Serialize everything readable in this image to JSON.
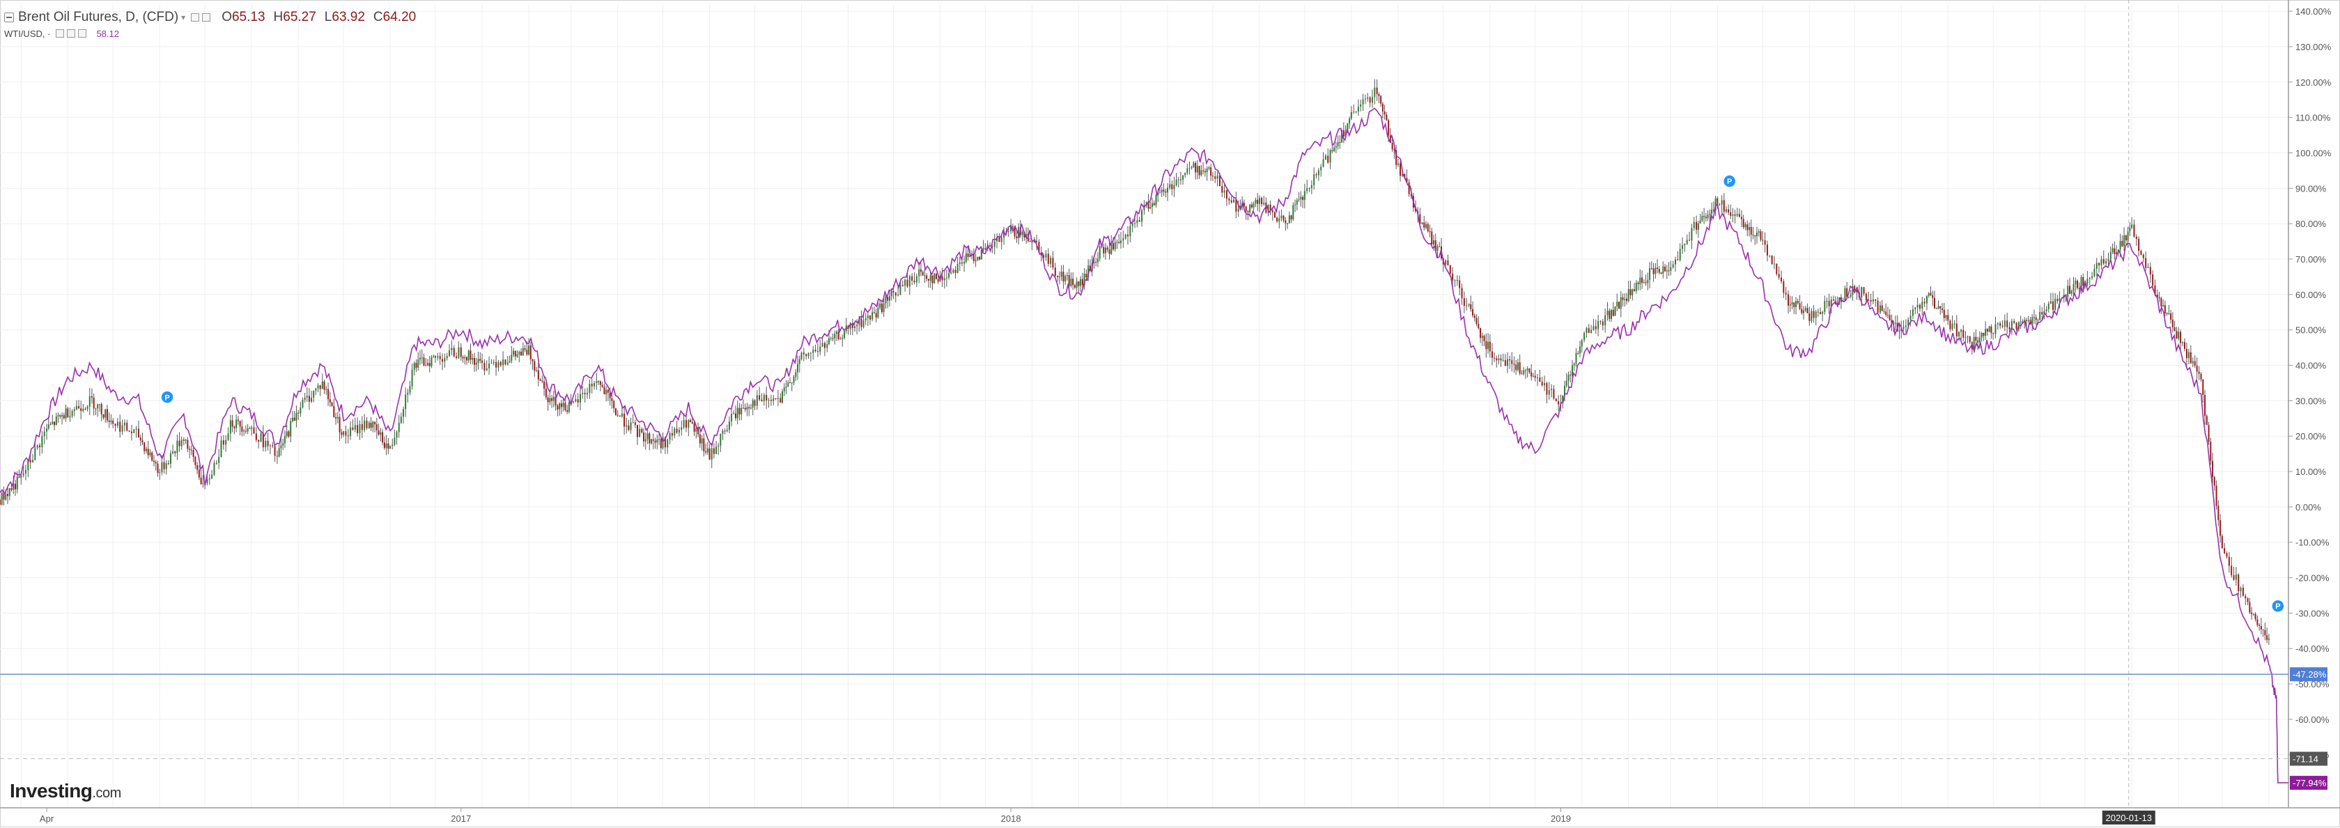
{
  "legend": {
    "main_title": "Brent Oil Futures, D, (CFD)",
    "open_label": "O",
    "open": "65.13",
    "high_label": "H",
    "high": "65.27",
    "low_label": "L",
    "low": "63.92",
    "close_label": "C",
    "close": "64.20",
    "sub_title": "WTI/USD, ·",
    "sub_value": "58.12"
  },
  "logo": {
    "brand": "Investing",
    "suffix": ".com"
  },
  "colors": {
    "up_candle": "#2e7d32",
    "down_candle": "#a01818",
    "wti_line": "#9b2fae",
    "horizontal_line": "#6f8fd6",
    "grid": "#efefef",
    "axis_text": "#555555"
  },
  "chart_data": {
    "type": "line",
    "title": "",
    "xlabel": "",
    "ylabel": "",
    "x_tick_labels": [
      "Apr",
      "2017",
      "2018",
      "2019"
    ],
    "x_tick_dates": [
      "2016-04-01",
      "2017-01-01",
      "2018-01-01",
      "2019-01-01"
    ],
    "crosshair_label": "2020-01-13",
    "crosshair_date": "2020-01-13",
    "x_range": [
      "2016-03-01",
      "2020-04-28"
    ],
    "ylim": [
      -85,
      142
    ],
    "y_tick_values": [
      140,
      130,
      120,
      110,
      100,
      90,
      80,
      70,
      60,
      50,
      40,
      30,
      20,
      10,
      0,
      -10,
      -20,
      -30,
      -40,
      -50,
      -60,
      -70
    ],
    "y_tick_labels": [
      "140.00%",
      "130.00%",
      "120.00%",
      "110.00%",
      "100.00%",
      "90.00%",
      "80.00%",
      "70.00%",
      "60.00%",
      "50.00%",
      "40.00%",
      "30.00%",
      "20.00%",
      "10.00%",
      "0.00%",
      "-10.00%",
      "-20.00%",
      "-30.00%",
      "-40.00%",
      "-50.00%",
      "-60.00%",
      "-70.00%"
    ],
    "grid": true,
    "horizontal_line": {
      "value": -47.28,
      "label": "-47.28%"
    },
    "price_tags": [
      {
        "value": -71.14,
        "label": "-71.14",
        "color": "#555555"
      },
      {
        "value": -77.94,
        "label": "-77.94%",
        "color": "#8e1b9a"
      }
    ],
    "markers": [
      {
        "date": "2016-06-20",
        "value": 31,
        "label": "P"
      },
      {
        "date": "2019-04-23",
        "value": 92,
        "label": "P"
      },
      {
        "date": "2020-04-21",
        "value": -28,
        "label": "P"
      }
    ],
    "series": [
      {
        "name": "Brent Oil Futures",
        "kind": "candlestick",
        "dates": [
          "2016-03-01",
          "2016-03-15",
          "2016-04-01",
          "2016-04-15",
          "2016-05-01",
          "2016-05-15",
          "2016-06-01",
          "2016-06-15",
          "2016-07-01",
          "2016-07-15",
          "2016-08-01",
          "2016-08-15",
          "2016-09-01",
          "2016-09-15",
          "2016-10-01",
          "2016-10-15",
          "2016-11-01",
          "2016-11-15",
          "2016-12-01",
          "2016-12-15",
          "2017-01-01",
          "2017-01-15",
          "2017-02-01",
          "2017-02-15",
          "2017-03-01",
          "2017-03-15",
          "2017-04-01",
          "2017-04-15",
          "2017-05-01",
          "2017-05-15",
          "2017-06-01",
          "2017-06-15",
          "2017-07-01",
          "2017-07-15",
          "2017-08-01",
          "2017-08-15",
          "2017-09-01",
          "2017-09-15",
          "2017-10-01",
          "2017-10-15",
          "2017-11-01",
          "2017-11-15",
          "2017-12-01",
          "2017-12-15",
          "2018-01-01",
          "2018-01-15",
          "2018-02-01",
          "2018-02-15",
          "2018-03-01",
          "2018-03-15",
          "2018-04-01",
          "2018-04-15",
          "2018-05-01",
          "2018-05-15",
          "2018-06-01",
          "2018-06-15",
          "2018-07-01",
          "2018-07-15",
          "2018-08-01",
          "2018-08-15",
          "2018-09-01",
          "2018-09-15",
          "2018-10-01",
          "2018-10-15",
          "2018-11-01",
          "2018-11-15",
          "2018-12-01",
          "2018-12-15",
          "2019-01-01",
          "2019-01-15",
          "2019-02-01",
          "2019-02-15",
          "2019-03-01",
          "2019-03-15",
          "2019-04-01",
          "2019-04-15",
          "2019-05-01",
          "2019-05-15",
          "2019-06-01",
          "2019-06-15",
          "2019-07-01",
          "2019-07-15",
          "2019-08-01",
          "2019-08-15",
          "2019-09-01",
          "2019-09-15",
          "2019-10-01",
          "2019-10-15",
          "2019-11-01",
          "2019-11-15",
          "2019-12-01",
          "2019-12-15",
          "2020-01-01",
          "2020-01-15",
          "2020-02-01",
          "2020-02-15",
          "2020-03-01",
          "2020-03-15",
          "2020-04-01",
          "2020-04-15"
        ],
        "values": [
          2,
          8,
          22,
          27,
          30,
          24,
          20,
          10,
          20,
          5,
          24,
          22,
          14,
          28,
          35,
          20,
          24,
          16,
          40,
          42,
          44,
          40,
          42,
          44,
          30,
          28,
          36,
          26,
          20,
          18,
          24,
          14,
          26,
          30,
          30,
          42,
          46,
          50,
          54,
          60,
          66,
          64,
          70,
          72,
          78,
          76,
          66,
          62,
          72,
          74,
          85,
          90,
          96,
          94,
          84,
          86,
          80,
          88,
          100,
          110,
          118,
          96,
          80,
          70,
          56,
          44,
          40,
          36,
          30,
          48,
          54,
          60,
          66,
          68,
          80,
          86,
          80,
          76,
          58,
          54,
          58,
          62,
          56,
          50,
          60,
          52,
          46,
          50,
          52,
          54,
          60,
          64,
          72,
          78,
          60,
          48,
          36,
          -12,
          -28,
          -38
        ],
        "spread": 3.5
      },
      {
        "name": "WTI/USD",
        "kind": "line",
        "dates": [
          "2016-03-01",
          "2016-03-15",
          "2016-04-01",
          "2016-04-15",
          "2016-05-01",
          "2016-05-15",
          "2016-06-01",
          "2016-06-15",
          "2016-07-01",
          "2016-07-15",
          "2016-08-01",
          "2016-08-15",
          "2016-09-01",
          "2016-09-15",
          "2016-10-01",
          "2016-10-15",
          "2016-11-01",
          "2016-11-15",
          "2016-12-01",
          "2016-12-15",
          "2017-01-01",
          "2017-01-15",
          "2017-02-01",
          "2017-02-15",
          "2017-03-01",
          "2017-03-15",
          "2017-04-01",
          "2017-04-15",
          "2017-05-01",
          "2017-05-15",
          "2017-06-01",
          "2017-06-15",
          "2017-07-01",
          "2017-07-15",
          "2017-08-01",
          "2017-08-15",
          "2017-09-01",
          "2017-09-15",
          "2017-10-01",
          "2017-10-15",
          "2017-11-01",
          "2017-11-15",
          "2017-12-01",
          "2017-12-15",
          "2018-01-01",
          "2018-01-15",
          "2018-02-01",
          "2018-02-15",
          "2018-03-01",
          "2018-03-15",
          "2018-04-01",
          "2018-04-15",
          "2018-05-01",
          "2018-05-15",
          "2018-06-01",
          "2018-06-15",
          "2018-07-01",
          "2018-07-15",
          "2018-08-01",
          "2018-08-15",
          "2018-09-01",
          "2018-09-15",
          "2018-10-01",
          "2018-10-15",
          "2018-11-01",
          "2018-11-15",
          "2018-12-01",
          "2018-12-15",
          "2019-01-01",
          "2019-01-15",
          "2019-02-01",
          "2019-02-15",
          "2019-03-01",
          "2019-03-15",
          "2019-04-01",
          "2019-04-15",
          "2019-05-01",
          "2019-05-15",
          "2019-06-01",
          "2019-06-15",
          "2019-07-01",
          "2019-07-15",
          "2019-08-01",
          "2019-08-15",
          "2019-09-01",
          "2019-09-15",
          "2019-10-01",
          "2019-10-15",
          "2019-11-01",
          "2019-11-15",
          "2019-12-01",
          "2019-12-15",
          "2020-01-01",
          "2020-01-15",
          "2020-02-01",
          "2020-02-15",
          "2020-03-01",
          "2020-03-15",
          "2020-04-01",
          "2020-04-15",
          "2020-04-20",
          "2020-04-21",
          "2020-04-28"
        ],
        "values": [
          4,
          10,
          26,
          36,
          40,
          32,
          30,
          14,
          26,
          8,
          30,
          26,
          18,
          34,
          40,
          26,
          30,
          20,
          46,
          46,
          50,
          46,
          48,
          48,
          34,
          30,
          40,
          30,
          24,
          20,
          28,
          18,
          30,
          36,
          34,
          46,
          50,
          52,
          56,
          62,
          70,
          66,
          72,
          72,
          80,
          76,
          62,
          60,
          74,
          78,
          86,
          94,
          100,
          98,
          86,
          82,
          86,
          100,
          104,
          106,
          112,
          100,
          78,
          70,
          48,
          34,
          20,
          16,
          28,
          42,
          48,
          50,
          56,
          60,
          72,
          84,
          74,
          62,
          44,
          44,
          56,
          62,
          52,
          50,
          54,
          48,
          44,
          46,
          50,
          52,
          58,
          62,
          68,
          74,
          58,
          44,
          32,
          -18,
          -32,
          -45,
          -55,
          -77.94,
          -77.94
        ]
      }
    ]
  }
}
